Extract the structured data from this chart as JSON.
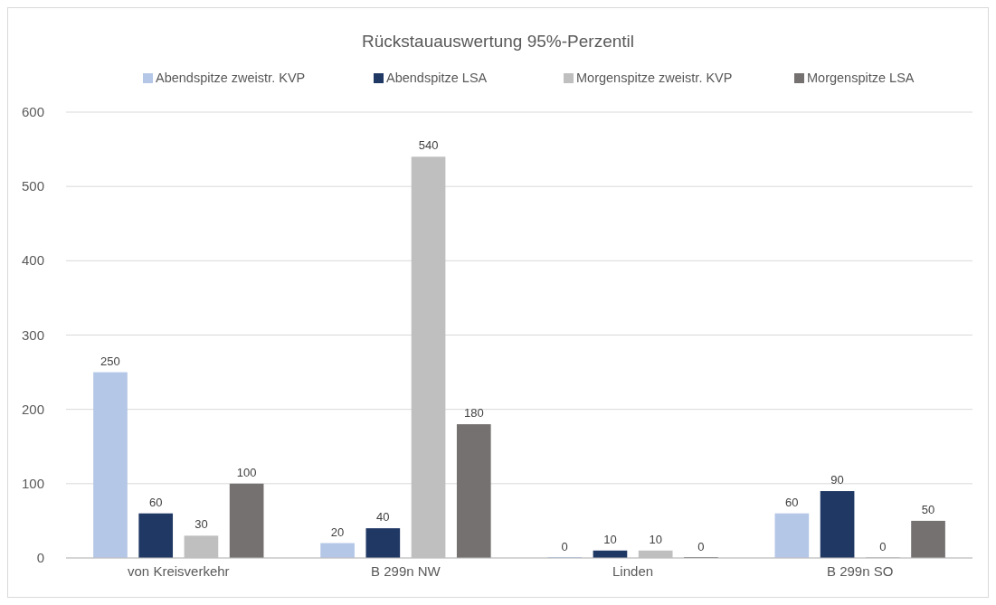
{
  "chart_data": {
    "type": "bar",
    "title": "Rückstauauswertung 95%-Perzentil",
    "categories": [
      "von Kreisverkehr",
      "B 299n NW",
      "Linden",
      "B 299n SO"
    ],
    "series": [
      {
        "name": "Abendspitze zweistr. KVP",
        "color": "#b4c7e7",
        "values": [
          250,
          20,
          0,
          60
        ]
      },
      {
        "name": "Abendspitze LSA",
        "color": "#203864",
        "values": [
          60,
          40,
          10,
          90
        ]
      },
      {
        "name": "Morgenspitze zweistr. KVP",
        "color": "#bfbfbf",
        "values": [
          30,
          540,
          10,
          0
        ]
      },
      {
        "name": "Morgenspitze LSA",
        "color": "#767171",
        "values": [
          100,
          180,
          0,
          50
        ]
      }
    ],
    "ylim": [
      0,
      600
    ],
    "yticks": [
      0,
      100,
      200,
      300,
      400,
      500,
      600
    ],
    "grid": "y",
    "legend": "top",
    "data_labels": true
  }
}
